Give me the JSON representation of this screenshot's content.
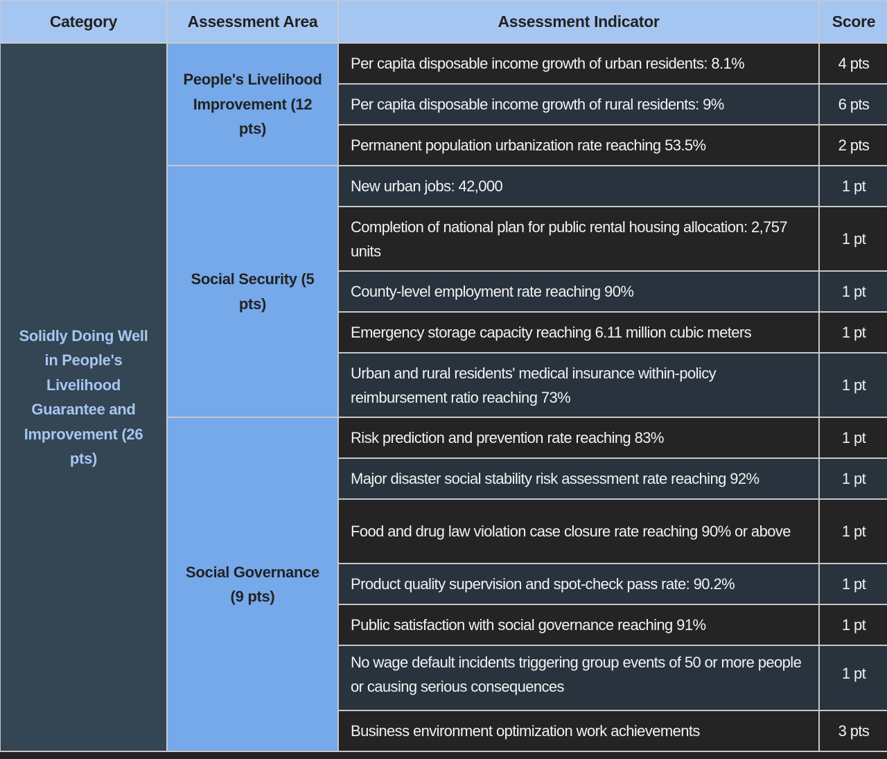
{
  "table": {
    "headers": {
      "category": "Category",
      "area": "Assessment Area",
      "indicator": "Assessment Indicator",
      "score": "Score"
    },
    "category": {
      "label": "Solidly Doing Well in People's Livelihood Guarantee and Improvement (26 pts)"
    },
    "areas": [
      {
        "label": "People's Livelihood Improvement (12 pts)"
      },
      {
        "label": "Social Security (5 pts)"
      },
      {
        "label": "Social Governance (9 pts)"
      }
    ],
    "rows": [
      {
        "indicator": "Per capita disposable income growth of urban residents: 8.1%",
        "score": "4 pts"
      },
      {
        "indicator": "Per capita disposable income growth of rural residents: 9%",
        "score": "6 pts"
      },
      {
        "indicator": "Permanent population urbanization rate reaching 53.5%",
        "score": "2 pts"
      },
      {
        "indicator": "New urban jobs: 42,000",
        "score": "1 pt"
      },
      {
        "indicator": "Completion of national plan for public rental housing allocation: 2,757 units",
        "score": "1 pt"
      },
      {
        "indicator": "County-level employment rate reaching 90%",
        "score": "1 pt"
      },
      {
        "indicator": "Emergency storage capacity reaching 6.11 million cubic meters",
        "score": "1 pt"
      },
      {
        "indicator": "Urban and rural residents' medical insurance within-policy reimbursement ratio reaching 73%",
        "score": "1 pt"
      },
      {
        "indicator": "Risk prediction and prevention rate reaching 83%",
        "score": "1 pt"
      },
      {
        "indicator": "Major disaster social stability risk assessment rate reaching 92%",
        "score": "1 pt"
      },
      {
        "indicator": "Food and drug law violation case closure rate reaching 90% or above",
        "score": "1 pt"
      },
      {
        "indicator": "Product quality supervision and spot-check pass rate: 90.2%",
        "score": "1 pt"
      },
      {
        "indicator": "Public satisfaction with social governance reaching 91%",
        "score": "1 pt"
      },
      {
        "indicator": "No wage default incidents triggering group events of 50 or more people or causing serious consequences",
        "score": "1 pt"
      },
      {
        "indicator": "Business environment optimization work achievements",
        "score": "3 pts"
      }
    ]
  },
  "colors": {
    "header_bg": "#a6c6f2",
    "category_bg": "#344553",
    "category_text": "#a6c6f2",
    "area_bg": "#76a9ea",
    "row_dark": "#242424",
    "row_slate": "#28333d",
    "border": "#c9c9c9"
  }
}
